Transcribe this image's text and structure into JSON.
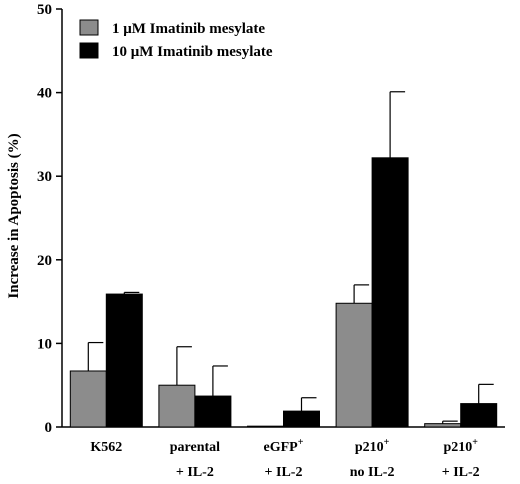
{
  "chart_data": {
    "type": "bar",
    "title": "",
    "xlabel": "",
    "ylabel": "Increase in Apoptosis (%)",
    "ylim": [
      0,
      50
    ],
    "yticks": [
      0,
      10,
      20,
      30,
      40,
      50
    ],
    "grid": false,
    "legend_position": "top-left",
    "categories": [
      {
        "line1": "K562",
        "sup1": "",
        "line2": "",
        "sup2": ""
      },
      {
        "line1": "parental",
        "sup1": "",
        "line2": "+ IL-2",
        "sup2": ""
      },
      {
        "line1": "eGFP",
        "sup1": "+",
        "line2": "+ IL-2",
        "sup2": ""
      },
      {
        "line1": "p210",
        "sup1": "+",
        "line2": "no IL-2",
        "sup2": ""
      },
      {
        "line1": "p210",
        "sup1": "+",
        "line2": "+ IL-2",
        "sup2": ""
      }
    ],
    "series": [
      {
        "name": "1 μM Imatinib mesylate",
        "color": "#8c8c8c",
        "values": [
          6.7,
          5.0,
          0.1,
          14.8,
          0.4
        ],
        "errors": [
          3.4,
          4.6,
          0.0,
          2.2,
          0.3
        ]
      },
      {
        "name": "10 μM Imatinib mesylate",
        "color": "#000000",
        "values": [
          15.9,
          3.7,
          1.9,
          32.2,
          2.8
        ],
        "errors": [
          0.2,
          3.6,
          1.6,
          7.9,
          2.3
        ]
      }
    ]
  }
}
